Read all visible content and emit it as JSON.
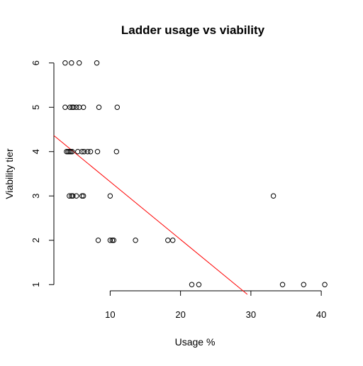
{
  "chart_data": {
    "type": "scatter",
    "title": "Ladder usage vs viability",
    "xlabel": "Usage %",
    "ylabel": "Viability tier",
    "xlim": [
      2.0,
      41.5
    ],
    "ylim": [
      0.78,
      6.22
    ],
    "x_ticks": [
      10,
      20,
      30,
      40
    ],
    "y_ticks": [
      1,
      2,
      3,
      4,
      5,
      6
    ],
    "grid": false,
    "legend": "none",
    "series": [
      {
        "marker": "open-circle",
        "color": "#000000",
        "points": [
          {
            "x": 3.6,
            "y": 6
          },
          {
            "x": 4.5,
            "y": 6
          },
          {
            "x": 5.6,
            "y": 6
          },
          {
            "x": 8.1,
            "y": 6
          },
          {
            "x": 3.6,
            "y": 5
          },
          {
            "x": 4.3,
            "y": 5
          },
          {
            "x": 4.6,
            "y": 5
          },
          {
            "x": 4.8,
            "y": 5
          },
          {
            "x": 5.2,
            "y": 5
          },
          {
            "x": 5.6,
            "y": 5
          },
          {
            "x": 6.2,
            "y": 5
          },
          {
            "x": 8.4,
            "y": 5
          },
          {
            "x": 11.0,
            "y": 5
          },
          {
            "x": 3.8,
            "y": 4
          },
          {
            "x": 4.0,
            "y": 4
          },
          {
            "x": 4.2,
            "y": 4
          },
          {
            "x": 4.4,
            "y": 4
          },
          {
            "x": 4.6,
            "y": 4
          },
          {
            "x": 5.4,
            "y": 4
          },
          {
            "x": 6.0,
            "y": 4
          },
          {
            "x": 6.3,
            "y": 4
          },
          {
            "x": 6.8,
            "y": 4
          },
          {
            "x": 7.2,
            "y": 4
          },
          {
            "x": 8.2,
            "y": 4
          },
          {
            "x": 10.9,
            "y": 4
          },
          {
            "x": 4.2,
            "y": 3
          },
          {
            "x": 4.5,
            "y": 3
          },
          {
            "x": 4.7,
            "y": 3
          },
          {
            "x": 5.2,
            "y": 3
          },
          {
            "x": 6.0,
            "y": 3
          },
          {
            "x": 6.2,
            "y": 3
          },
          {
            "x": 10.0,
            "y": 3
          },
          {
            "x": 33.2,
            "y": 3
          },
          {
            "x": 8.3,
            "y": 2
          },
          {
            "x": 10.0,
            "y": 2
          },
          {
            "x": 10.3,
            "y": 2
          },
          {
            "x": 10.5,
            "y": 2
          },
          {
            "x": 13.6,
            "y": 2
          },
          {
            "x": 18.2,
            "y": 2
          },
          {
            "x": 18.9,
            "y": 2
          },
          {
            "x": 21.6,
            "y": 1
          },
          {
            "x": 22.6,
            "y": 1
          },
          {
            "x": 34.5,
            "y": 1
          },
          {
            "x": 37.5,
            "y": 1
          },
          {
            "x": 40.5,
            "y": 1
          }
        ]
      }
    ],
    "regression_line": {
      "color": "#ff0000",
      "intercept": 4.623,
      "slope": -0.1303
    }
  }
}
